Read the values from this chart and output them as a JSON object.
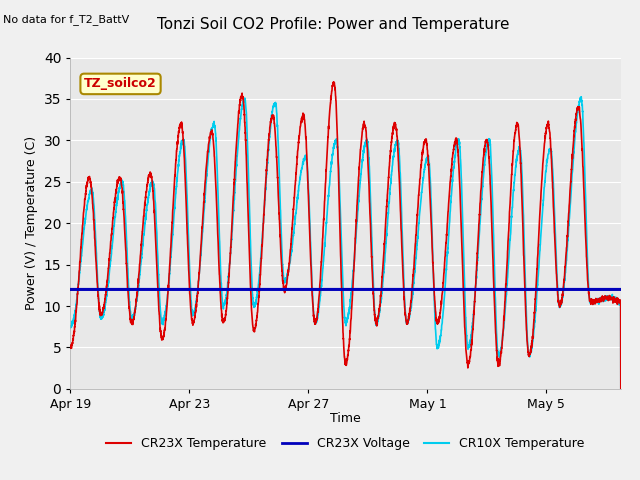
{
  "title": "Tonzi Soil CO2 Profile: Power and Temperature",
  "no_data_label": "No data for f_T2_BattV",
  "ylabel": "Power (V) / Temperature (C)",
  "xlabel": "Time",
  "ylim": [
    0,
    40
  ],
  "fig_bg_color": "#f0f0f0",
  "plot_bg_color": "#e8e8e8",
  "legend_box_label": "TZ_soilco2",
  "legend_entries": [
    "CR23X Temperature",
    "CR23X Voltage",
    "CR10X Temperature"
  ],
  "legend_colors": [
    "#dd0000",
    "#0000bb",
    "#00ccee"
  ],
  "voltage_value": 12.0,
  "xtick_labels": [
    "Apr 19",
    "Apr 23",
    "Apr 27",
    "May 1",
    "May 5"
  ],
  "xtick_positions": [
    0,
    4,
    8,
    12,
    16
  ],
  "total_days": 18.5,
  "grid_color": "#ffffff",
  "cr23x_color": "#dd0000",
  "cr10x_color": "#00ccee",
  "voltage_color": "#0000bb"
}
